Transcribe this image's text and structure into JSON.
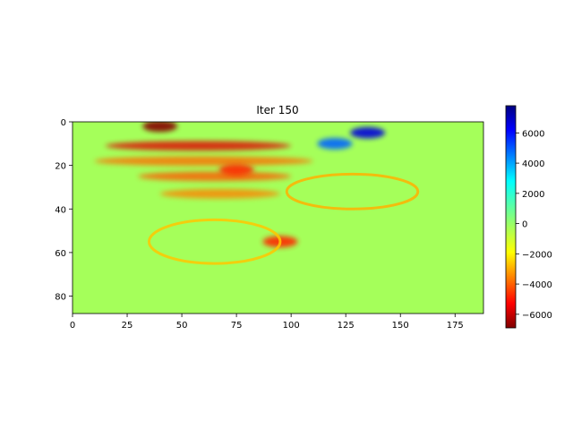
{
  "chart_data": {
    "type": "heatmap",
    "title": "Iter 150",
    "colormap": "jet_r",
    "x_range": [
      0,
      188
    ],
    "y_range": [
      0,
      88
    ],
    "y_inverted": true,
    "x_ticks": [
      0,
      25,
      50,
      75,
      100,
      125,
      150,
      175
    ],
    "y_ticks": [
      0,
      20,
      40,
      60,
      80
    ],
    "colorbar": {
      "range": [
        -6900,
        7800
      ],
      "ticks": [
        -6000,
        -4000,
        -2000,
        0,
        2000,
        4000,
        6000
      ]
    },
    "features": [
      {
        "kind": "band",
        "y": 11,
        "x_from": 15,
        "x_to": 100,
        "value": -5500
      },
      {
        "kind": "band",
        "y": 18,
        "x_from": 10,
        "x_to": 110,
        "value": -3500
      },
      {
        "kind": "band",
        "y": 25,
        "x_from": 30,
        "x_to": 100,
        "value": -3800
      },
      {
        "kind": "band",
        "y": 33,
        "x_from": 40,
        "x_to": 95,
        "value": -3200
      },
      {
        "kind": "blob",
        "x": 40,
        "y": 2,
        "value": -6800
      },
      {
        "kind": "blob",
        "x": 75,
        "y": 22,
        "value": -4500
      },
      {
        "kind": "blob",
        "x": 135,
        "y": 5,
        "value": 6500
      },
      {
        "kind": "blob",
        "x": 120,
        "y": 10,
        "value": 4500
      },
      {
        "kind": "blob",
        "x": 95,
        "y": 55,
        "value": -4500
      },
      {
        "kind": "ellipse_edge",
        "cx": 128,
        "cy": 32,
        "rx": 30,
        "ry": 8,
        "value": -2500
      },
      {
        "kind": "ellipse_edge",
        "cx": 65,
        "cy": 55,
        "rx": 30,
        "ry": 10,
        "value": -2200
      }
    ]
  }
}
